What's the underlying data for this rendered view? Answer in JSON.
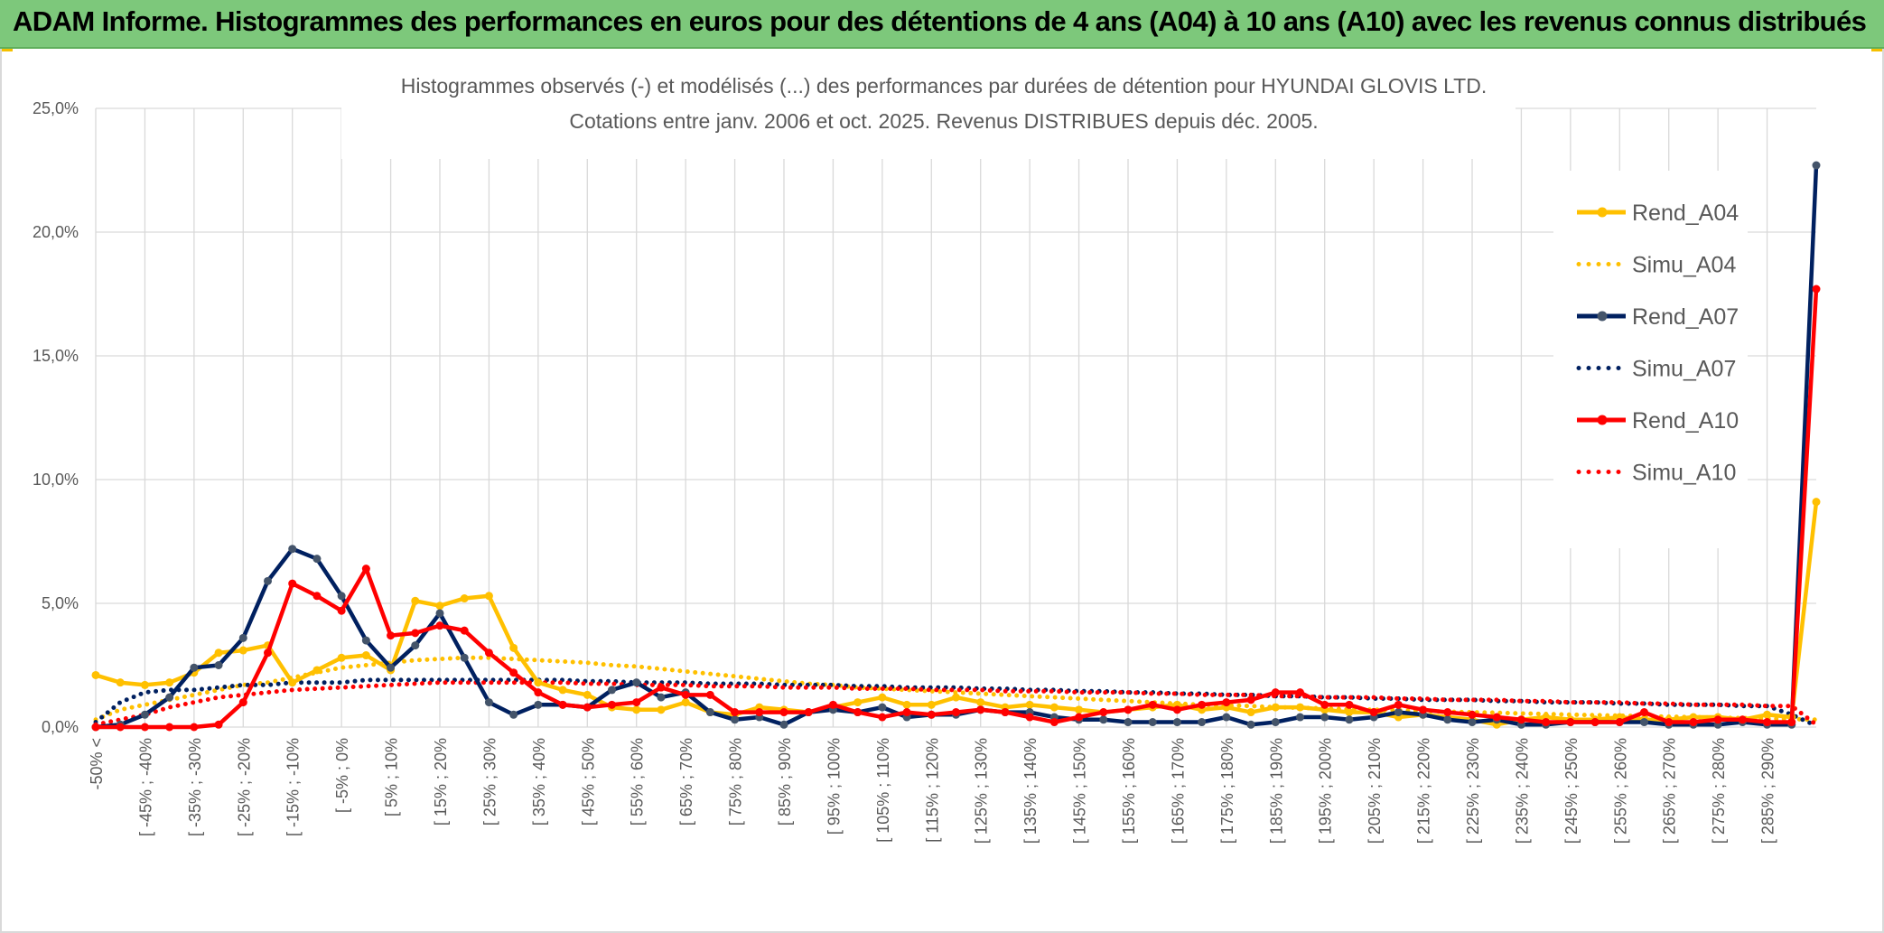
{
  "header": {
    "title": "ADAM Informe. Histogrammes des performances en euros pour des détentions de 4 ans (A04) à 10 ans (A10) avec les revenus connus distribués"
  },
  "chart_data": {
    "type": "line",
    "title": "Histogrammes observés (-) et modélisés (...) des performances par durées de détention pour HYUNDAI GLOVIS LTD.",
    "subtitle": "Cotations entre janv. 2006 et oct. 2025. Revenus DISTRIBUES depuis déc. 2005.",
    "xlabel": "",
    "ylabel": "",
    "ylim": [
      0,
      25
    ],
    "yticks": [
      "0,0%",
      "5,0%",
      "10,0%",
      "15,0%",
      "20,0%",
      "25,0%"
    ],
    "grid": true,
    "legend_position": "right",
    "categories": [
      "-50% <",
      "[ -50% ; -45%",
      "[ -45% ; -40%",
      "[ -40% ; -35%",
      "[ -35% ; -30%",
      "[ -30% ; -25%",
      "[ -25% ; -20%",
      "[ -20% ; -15%",
      "[ -15% ; -10%",
      "[ -10% ; -5%",
      "[ -5% ; 0%",
      "[ 0% ; 5%",
      "[ 5% ; 10%",
      "[ 10% ; 15%",
      "[ 15% ; 20%",
      "[ 20% ; 25%",
      "[ 25% ; 30%",
      "[ 30% ; 35%",
      "[ 35% ; 40%",
      "[ 40% ; 45%",
      "[ 45% ; 50%",
      "[ 50% ; 55%",
      "[ 55% ; 60%",
      "[ 60% ; 65%",
      "[ 65% ; 70%",
      "[ 70% ; 75%",
      "[ 75% ; 80%",
      "[ 80% ; 85%",
      "[ 85% ; 90%",
      "[ 90% ; 95%",
      "[ 95% ; 100%",
      "[ 100% ; 105%",
      "[ 105% ; 110%",
      "[ 110% ; 115%",
      "[ 115% ; 120%",
      "[ 120% ; 125%",
      "[ 125% ; 130%",
      "[ 130% ; 135%",
      "[ 135% ; 140%",
      "[ 140% ; 145%",
      "[ 145% ; 150%",
      "[ 150% ; 155%",
      "[ 155% ; 160%",
      "[ 160% ; 165%",
      "[ 165% ; 170%",
      "[ 170% ; 175%",
      "[ 175% ; 180%",
      "[ 180% ; 185%",
      "[ 185% ; 190%",
      "[ 190% ; 195%",
      "[ 195% ; 200%",
      "[ 200% ; 205%",
      "[ 205% ; 210%",
      "[ 210% ; 215%",
      "[ 215% ; 220%",
      "[ 220% ; 225%",
      "[ 225% ; 230%",
      "[ 230% ; 235%",
      "[ 235% ; 240%",
      "[ 240% ; 245%",
      "[ 245% ; 250%",
      "[ 250% ; 255%",
      "[ 255% ; 260%",
      "[ 260% ; 265%",
      "[ 265% ; 270%",
      "[ 270% ; 275%",
      "[ 275% ; 280%",
      "[ 280% ; 285%",
      "[ 285% ; 290%",
      "[ 290% ; 295%",
      ">= 295%"
    ],
    "visible_tick_labels": [
      "-50% <",
      "[ -45% ; -40%",
      "[ -35% ; -30%",
      "[ -25% ; -20%",
      "[ -15% ; -10%",
      "[ -5% ; 0%",
      "[ 5% ; 10%",
      "[ 15% ; 20%",
      "[ 25% ; 30%",
      "[ 35% ; 40%",
      "[ 45% ; 50%",
      "[ 55% ; 60%",
      "[ 65% ; 70%",
      "[ 75% ; 80%",
      "[ 85% ; 90%",
      "[ 95% ; 100%",
      "[ 105% ; 110%",
      "[ 115% ; 120%",
      "[ 125% ; 130%",
      "[ 135% ; 140%",
      "[ 145% ; 150%",
      "[ 155% ; 160%",
      "[ 165% ; 170%",
      "[ 175% ; 180%",
      "[ 185% ; 190%",
      "[ 195% ; 200%",
      "[ 205% ; 210%",
      "[ 215% ; 220%",
      "[ 225% ; 230%",
      "[ 235% ; 240%",
      "[ 245% ; 250%",
      "[ 255% ; 260%",
      "[ 265% ; 270%",
      "[ 275% ; 280%",
      "[ 285% ; 290%"
    ],
    "series": [
      {
        "name": "Rend_A04",
        "style": "solid",
        "marker": true,
        "color": "#ffc000",
        "values": [
          2.1,
          1.8,
          1.7,
          1.8,
          2.2,
          3.0,
          3.1,
          3.3,
          1.8,
          2.3,
          2.8,
          2.9,
          2.3,
          5.1,
          4.9,
          5.2,
          5.3,
          3.2,
          1.8,
          1.5,
          1.3,
          0.8,
          0.7,
          0.7,
          1.0,
          0.6,
          0.5,
          0.8,
          0.7,
          0.6,
          0.8,
          1.0,
          1.2,
          0.9,
          0.9,
          1.2,
          1.0,
          0.8,
          0.9,
          0.8,
          0.7,
          0.6,
          0.7,
          0.8,
          0.9,
          0.7,
          0.8,
          0.6,
          0.8,
          0.8,
          0.7,
          0.6,
          0.6,
          0.4,
          0.5,
          0.4,
          0.3,
          0.1,
          0.3,
          0.4,
          0.3,
          0.3,
          0.4,
          0.3,
          0.3,
          0.4,
          0.4,
          0.3,
          0.5,
          0.4,
          9.1
        ]
      },
      {
        "name": "Simu_A04",
        "style": "dotted",
        "marker": false,
        "color": "#ffc000",
        "values": [
          0.3,
          0.7,
          0.9,
          1.1,
          1.3,
          1.5,
          1.7,
          1.8,
          2.0,
          2.2,
          2.4,
          2.5,
          2.6,
          2.7,
          2.75,
          2.8,
          2.8,
          2.75,
          2.7,
          2.65,
          2.6,
          2.5,
          2.45,
          2.35,
          2.25,
          2.15,
          2.05,
          1.95,
          1.85,
          1.75,
          1.7,
          1.6,
          1.55,
          1.5,
          1.45,
          1.4,
          1.35,
          1.3,
          1.25,
          1.2,
          1.15,
          1.1,
          1.05,
          1.0,
          0.95,
          0.9,
          0.88,
          0.85,
          0.8,
          0.78,
          0.75,
          0.72,
          0.7,
          0.68,
          0.65,
          0.62,
          0.6,
          0.58,
          0.55,
          0.53,
          0.5,
          0.48,
          0.46,
          0.44,
          0.42,
          0.4,
          0.38,
          0.36,
          0.34,
          0.32,
          0.3
        ]
      },
      {
        "name": "Rend_A07",
        "style": "solid",
        "marker": true,
        "color": "#002060",
        "values": [
          0.0,
          0.1,
          0.5,
          1.2,
          2.4,
          2.5,
          3.6,
          5.9,
          7.2,
          6.8,
          5.3,
          3.5,
          2.4,
          3.3,
          4.6,
          2.8,
          1.0,
          0.5,
          0.9,
          0.9,
          0.8,
          1.5,
          1.8,
          1.2,
          1.4,
          0.6,
          0.3,
          0.4,
          0.1,
          0.6,
          0.7,
          0.6,
          0.8,
          0.4,
          0.5,
          0.5,
          0.7,
          0.6,
          0.6,
          0.4,
          0.3,
          0.3,
          0.2,
          0.2,
          0.2,
          0.2,
          0.4,
          0.1,
          0.2,
          0.4,
          0.4,
          0.3,
          0.4,
          0.6,
          0.5,
          0.3,
          0.2,
          0.3,
          0.1,
          0.1,
          0.2,
          0.2,
          0.2,
          0.2,
          0.1,
          0.1,
          0.1,
          0.2,
          0.1,
          0.1,
          22.7
        ]
      },
      {
        "name": "Simu_A07",
        "style": "dotted",
        "marker": false,
        "color": "#002060",
        "values": [
          0.2,
          1.0,
          1.4,
          1.5,
          1.5,
          1.6,
          1.7,
          1.7,
          1.8,
          1.8,
          1.8,
          1.9,
          1.9,
          1.9,
          1.9,
          1.9,
          1.9,
          1.9,
          1.9,
          1.9,
          1.85,
          1.85,
          1.8,
          1.8,
          1.8,
          1.75,
          1.75,
          1.75,
          1.7,
          1.7,
          1.7,
          1.65,
          1.65,
          1.6,
          1.6,
          1.6,
          1.55,
          1.55,
          1.5,
          1.5,
          1.45,
          1.45,
          1.4,
          1.4,
          1.35,
          1.35,
          1.3,
          1.3,
          1.25,
          1.25,
          1.2,
          1.2,
          1.15,
          1.15,
          1.1,
          1.1,
          1.1,
          1.05,
          1.05,
          1.0,
          1.0,
          1.0,
          0.95,
          0.95,
          0.9,
          0.9,
          0.9,
          0.85,
          0.85,
          0.5,
          0.05
        ]
      },
      {
        "name": "Rend_A10",
        "style": "solid",
        "marker": true,
        "color": "#ff0000",
        "values": [
          0.0,
          0.0,
          0.0,
          0.0,
          0.0,
          0.1,
          1.0,
          3.0,
          5.8,
          5.3,
          4.7,
          6.4,
          3.7,
          3.8,
          4.1,
          3.9,
          3.0,
          2.2,
          1.4,
          0.9,
          0.8,
          0.9,
          1.0,
          1.6,
          1.3,
          1.3,
          0.6,
          0.6,
          0.6,
          0.6,
          0.9,
          0.6,
          0.4,
          0.6,
          0.5,
          0.6,
          0.7,
          0.6,
          0.4,
          0.2,
          0.4,
          0.6,
          0.7,
          0.9,
          0.7,
          0.9,
          1.0,
          1.1,
          1.4,
          1.4,
          0.9,
          0.9,
          0.6,
          0.9,
          0.7,
          0.6,
          0.5,
          0.4,
          0.3,
          0.2,
          0.2,
          0.2,
          0.2,
          0.6,
          0.2,
          0.2,
          0.3,
          0.3,
          0.2,
          0.2,
          17.7
        ]
      },
      {
        "name": "Simu_A10",
        "style": "dotted",
        "marker": false,
        "color": "#ff0000",
        "values": [
          0.1,
          0.3,
          0.5,
          0.8,
          1.0,
          1.2,
          1.3,
          1.4,
          1.5,
          1.55,
          1.6,
          1.65,
          1.7,
          1.75,
          1.8,
          1.8,
          1.8,
          1.8,
          1.8,
          1.8,
          1.75,
          1.75,
          1.7,
          1.7,
          1.7,
          1.65,
          1.65,
          1.65,
          1.6,
          1.6,
          1.6,
          1.55,
          1.55,
          1.55,
          1.5,
          1.5,
          1.5,
          1.45,
          1.45,
          1.45,
          1.4,
          1.4,
          1.4,
          1.35,
          1.35,
          1.3,
          1.3,
          1.3,
          1.25,
          1.25,
          1.2,
          1.2,
          1.2,
          1.15,
          1.15,
          1.1,
          1.1,
          1.1,
          1.05,
          1.05,
          1.0,
          1.0,
          1.0,
          0.95,
          0.95,
          0.9,
          0.9,
          0.9,
          0.85,
          0.85,
          0.1
        ]
      }
    ]
  }
}
